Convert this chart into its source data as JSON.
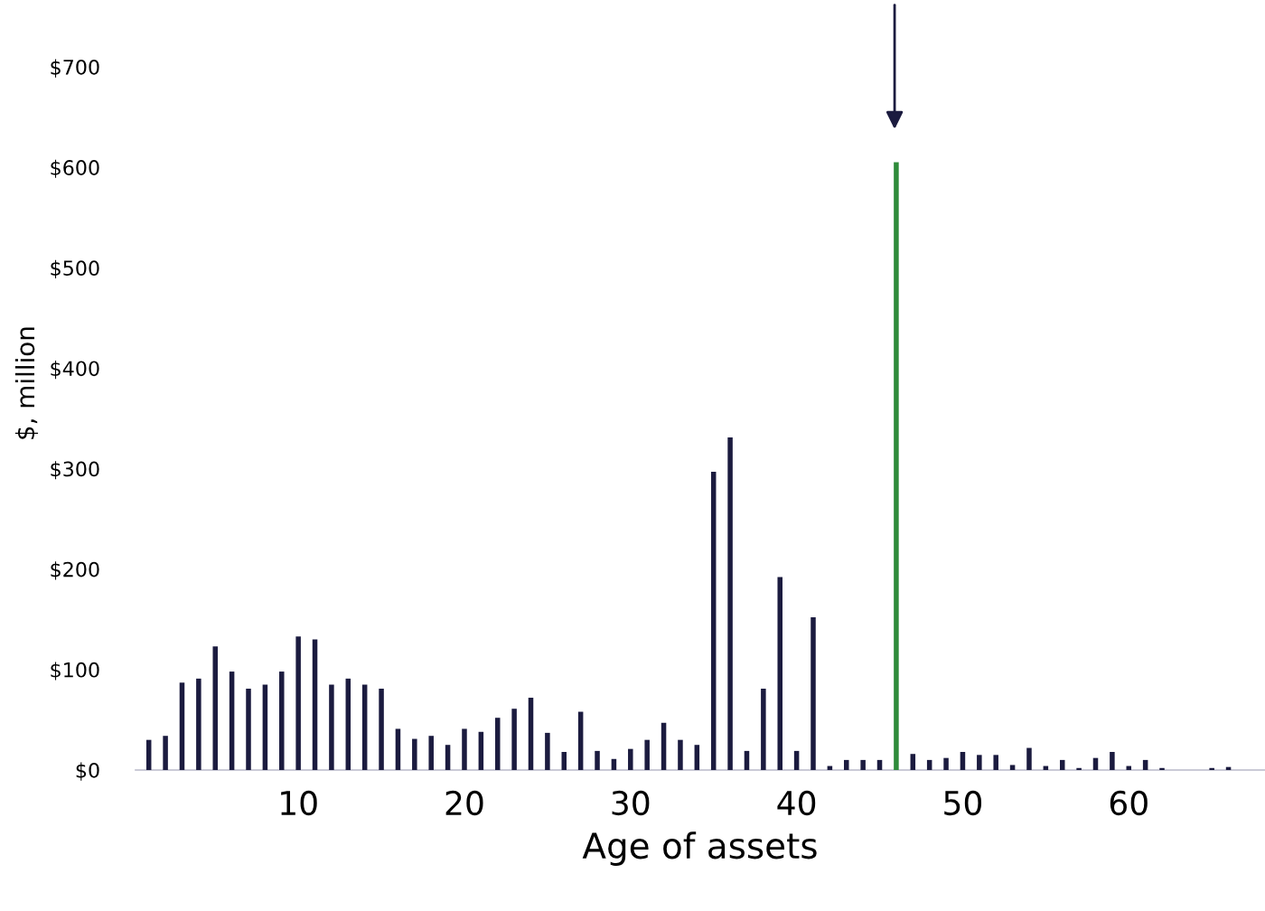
{
  "chart_data": {
    "type": "bar",
    "xlabel": "Age of assets",
    "ylabel": "$, million",
    "x": [
      1,
      2,
      3,
      4,
      5,
      6,
      7,
      8,
      9,
      10,
      11,
      12,
      13,
      14,
      15,
      16,
      17,
      18,
      19,
      20,
      21,
      22,
      23,
      24,
      25,
      26,
      27,
      28,
      29,
      30,
      31,
      32,
      33,
      34,
      35,
      36,
      37,
      38,
      39,
      40,
      41,
      42,
      43,
      44,
      45,
      46,
      47,
      48,
      49,
      50,
      51,
      52,
      53,
      54,
      55,
      56,
      57,
      58,
      59,
      60,
      61,
      62,
      63,
      64,
      65,
      66
    ],
    "values": [
      30,
      34,
      87,
      91,
      123,
      98,
      81,
      85,
      98,
      133,
      130,
      85,
      91,
      85,
      81,
      41,
      31,
      34,
      25,
      41,
      38,
      52,
      61,
      72,
      37,
      18,
      58,
      19,
      11,
      21,
      30,
      47,
      30,
      25,
      297,
      331,
      19,
      81,
      192,
      19,
      152,
      4,
      10,
      10,
      10,
      605,
      16,
      10,
      12,
      18,
      15,
      15,
      5,
      22,
      4,
      10,
      2,
      12,
      18,
      4,
      10,
      2,
      null,
      null,
      2,
      3
    ],
    "colors": [
      "#1b1b3f",
      "#1b1b3f",
      "#1b1b3f",
      "#1b1b3f",
      "#1b1b3f",
      "#1b1b3f",
      "#1b1b3f",
      "#1b1b3f",
      "#1b1b3f",
      "#1b1b3f",
      "#1b1b3f",
      "#1b1b3f",
      "#1b1b3f",
      "#1b1b3f",
      "#1b1b3f",
      "#1b1b3f",
      "#1b1b3f",
      "#1b1b3f",
      "#1b1b3f",
      "#1b1b3f",
      "#1b1b3f",
      "#1b1b3f",
      "#1b1b3f",
      "#1b1b3f",
      "#1b1b3f",
      "#1b1b3f",
      "#1b1b3f",
      "#1b1b3f",
      "#1b1b3f",
      "#1b1b3f",
      "#1b1b3f",
      "#1b1b3f",
      "#1b1b3f",
      "#1b1b3f",
      "#1b1b3f",
      "#1b1b3f",
      "#1b1b3f",
      "#1b1b3f",
      "#1b1b3f",
      "#1b1b3f",
      "#1b1b3f",
      "#1b1b3f",
      "#1b1b3f",
      "#1b1b3f",
      "#1b1b3f",
      "#2e8b3a",
      "#1b1b3f",
      "#1b1b3f",
      "#1b1b3f",
      "#1b1b3f",
      "#1b1b3f",
      "#1b1b3f",
      "#1b1b3f",
      "#1b1b3f",
      "#1b1b3f",
      "#1b1b3f",
      "#1b1b3f",
      "#1b1b3f",
      "#1b1b3f",
      "#1b1b3f",
      "#1b1b3f",
      "#1b1b3f",
      "#1b1b3f",
      "#1b1b3f",
      "#1b1b3f",
      "#1b1b3f"
    ],
    "xlim": [
      0.2,
      68.2
    ],
    "xticks": [
      10,
      20,
      30,
      40,
      50,
      60
    ],
    "ylim": [
      0,
      700
    ],
    "yticks": [
      {
        "value": 0,
        "label": "$0"
      },
      {
        "value": 100,
        "label": "$100"
      },
      {
        "value": 200,
        "label": "$200"
      },
      {
        "value": 300,
        "label": "$300"
      },
      {
        "value": 400,
        "label": "$400"
      },
      {
        "value": 500,
        "label": "$500"
      },
      {
        "value": 600,
        "label": "$600"
      },
      {
        "value": 700,
        "label": "$700"
      }
    ],
    "grid": false,
    "legend": false
  }
}
